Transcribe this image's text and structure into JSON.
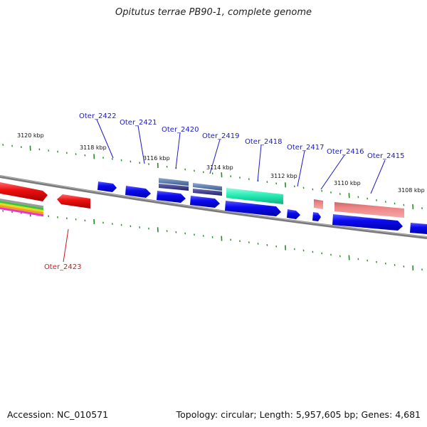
{
  "title": "Opitutus terrae PB90-1, complete genome",
  "footer": {
    "accession": "Accession: NC_010571",
    "topology": "Topology: circular; Length: 5,957,605 bp; Genes: 4,681"
  },
  "ticks": {
    "outer_labels": [
      "3120 kbp",
      "3118 kbp",
      "3116 kbp",
      "3114 kbp",
      "3112 kbp",
      "3110 kbp",
      "3108 kbp"
    ],
    "colors": {
      "major": "#2a8a2a",
      "minor": "#2a8a2a"
    }
  },
  "genes": {
    "upper": [
      "Oter_2422",
      "Oter_2421",
      "Oter_2420",
      "Oter_2419",
      "Oter_2418",
      "Oter_2417",
      "Oter_2416",
      "Oter_2415"
    ],
    "lower": [
      "Oter_2423"
    ]
  },
  "colors": {
    "label_blue": "#1a1acc",
    "label_red": "#cc1a1a",
    "cds_blue": "#0a0af0",
    "cds_red": "#ee1111",
    "teal": "#22e8b0",
    "salmon": "#ee8080",
    "steel": "#5a7aa8",
    "navy": "#3a3a88",
    "backbone": "#7a7a7a"
  }
}
